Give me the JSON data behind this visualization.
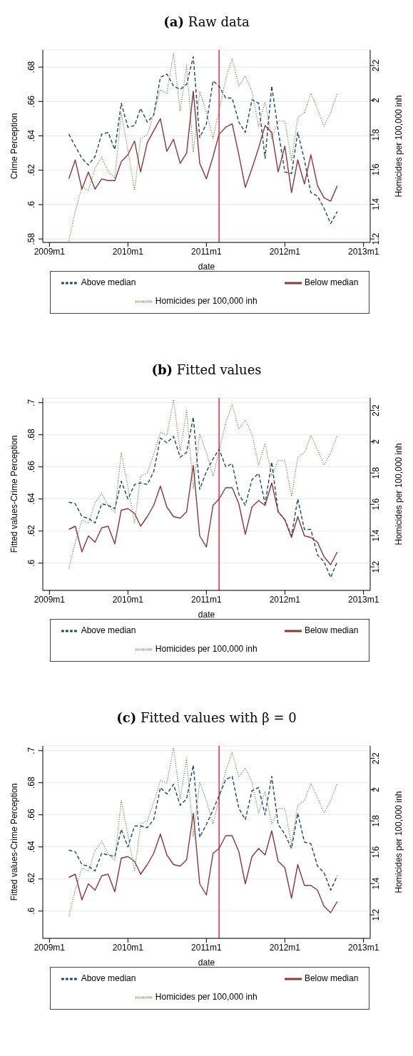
{
  "chart_data": [
    {
      "type": "line",
      "title": "(a) Raw data",
      "xlabel": "date",
      "ylabel": "Crime Perception",
      "y2label": "Homicides per 100,000 inh",
      "x": [
        "2009-04",
        "2009-05",
        "2009-06",
        "2009-07",
        "2009-08",
        "2009-09",
        "2009-10",
        "2009-11",
        "2009-12",
        "2010-01",
        "2010-02",
        "2010-03",
        "2010-04",
        "2010-05",
        "2010-06",
        "2010-07",
        "2010-08",
        "2010-09",
        "2010-10",
        "2010-11",
        "2010-12",
        "2011-01",
        "2011-02",
        "2011-03",
        "2011-04",
        "2011-05",
        "2011-06",
        "2011-07",
        "2011-08",
        "2011-09",
        "2011-10",
        "2011-11",
        "2011-12",
        "2012-01",
        "2012-02",
        "2012-03",
        "2012-04",
        "2012-05",
        "2012-06",
        "2012-07",
        "2012-08",
        "2012-09"
      ],
      "series": [
        {
          "name": "Above median",
          "color": "#1a476f",
          "line_style": "dashed",
          "values": [
            0.641,
            0.634,
            0.627,
            0.623,
            0.628,
            0.641,
            0.642,
            0.632,
            0.659,
            0.645,
            0.646,
            0.656,
            0.648,
            0.652,
            0.674,
            0.676,
            0.669,
            0.667,
            0.67,
            0.686,
            0.639,
            0.647,
            0.672,
            0.669,
            0.662,
            0.662,
            0.648,
            0.642,
            0.661,
            0.659,
            0.627,
            0.669,
            0.643,
            0.619,
            0.618,
            0.642,
            0.626,
            0.607,
            0.605,
            0.598,
            0.589,
            0.596
          ]
        },
        {
          "name": "Below median",
          "color": "#90353b",
          "line_style": "solid",
          "values": [
            0.615,
            0.626,
            0.609,
            0.619,
            0.609,
            0.615,
            0.614,
            0.614,
            0.625,
            0.629,
            0.637,
            0.619,
            0.636,
            0.643,
            0.65,
            0.631,
            0.638,
            0.624,
            0.63,
            0.666,
            0.624,
            0.615,
            0.628,
            0.641,
            0.645,
            0.647,
            0.629,
            0.61,
            0.621,
            0.633,
            0.646,
            0.642,
            0.619,
            0.634,
            0.607,
            0.626,
            0.612,
            0.629,
            0.611,
            0.604,
            0.602,
            0.611
          ]
        },
        {
          "name": "Homicides per 100,000 inh",
          "color": "#55752f",
          "line_style": "dotted",
          "axis": "y2",
          "values": [
            1.19,
            1.36,
            1.5,
            1.48,
            1.61,
            1.67,
            1.59,
            1.55,
            1.93,
            1.71,
            1.48,
            1.78,
            1.8,
            1.92,
            2.06,
            2.04,
            2.27,
            1.94,
            2.2,
            1.7,
            2.05,
            1.93,
            1.78,
            1.94,
            2.12,
            2.24,
            2.08,
            2.14,
            2.05,
            1.85,
            1.99,
            1.78,
            1.88,
            1.88,
            1.65,
            1.9,
            1.93,
            2.04,
            1.95,
            1.85,
            1.93,
            2.04
          ]
        }
      ],
      "xlim": [
        "2008-12",
        "2013-02"
      ],
      "xticks": [
        {
          "value": "2009-01",
          "label": "2009m1"
        },
        {
          "value": "2010-01",
          "label": "2010m1"
        },
        {
          "value": "2011-01",
          "label": "2011m1"
        },
        {
          "value": "2012-01",
          "label": "2012m1"
        },
        {
          "value": "2013-01",
          "label": "2013m1"
        }
      ],
      "ylim": [
        0.578,
        0.69
      ],
      "yticks": [
        {
          "value": 0.58,
          "label": ".58"
        },
        {
          "value": 0.6,
          "label": ".6"
        },
        {
          "value": 0.62,
          "label": ".62"
        },
        {
          "value": 0.64,
          "label": ".64"
        },
        {
          "value": 0.66,
          "label": ".66"
        },
        {
          "value": 0.68,
          "label": ".68"
        }
      ],
      "y2lim": [
        1.18,
        2.29
      ],
      "y2ticks": [
        1.2,
        1.4,
        1.6,
        1.8,
        2,
        2.2
      ],
      "ref_lines": [
        {
          "axis": "x",
          "value": "2011-03",
          "color": "#d6203a"
        }
      ],
      "grid": "y",
      "legend": "bottom"
    },
    {
      "type": "line",
      "title": "(b) Fitted values",
      "xlabel": "date",
      "ylabel": "Fitted values-Crime Perception",
      "y2label": "Homicides per 100,000 inh",
      "x": [
        "2009-04",
        "2009-05",
        "2009-06",
        "2009-07",
        "2009-08",
        "2009-09",
        "2009-10",
        "2009-11",
        "2009-12",
        "2010-01",
        "2010-02",
        "2010-03",
        "2010-04",
        "2010-05",
        "2010-06",
        "2010-07",
        "2010-08",
        "2010-09",
        "2010-10",
        "2010-11",
        "2010-12",
        "2011-01",
        "2011-02",
        "2011-03",
        "2011-04",
        "2011-05",
        "2011-06",
        "2011-07",
        "2011-08",
        "2011-09",
        "2011-10",
        "2011-11",
        "2011-12",
        "2012-01",
        "2012-02",
        "2012-03",
        "2012-04",
        "2012-05",
        "2012-06",
        "2012-07",
        "2012-08",
        "2012-09"
      ],
      "series": [
        {
          "name": "Above median",
          "color": "#1a476f",
          "line_style": "dashed",
          "values": [
            0.638,
            0.637,
            0.629,
            0.628,
            0.625,
            0.637,
            0.636,
            0.634,
            0.651,
            0.64,
            0.649,
            0.65,
            0.649,
            0.657,
            0.678,
            0.675,
            0.679,
            0.666,
            0.669,
            0.691,
            0.646,
            0.657,
            0.665,
            0.671,
            0.66,
            0.662,
            0.643,
            0.636,
            0.652,
            0.656,
            0.637,
            0.663,
            0.632,
            0.627,
            0.617,
            0.64,
            0.621,
            0.621,
            0.605,
            0.601,
            0.591,
            0.601
          ]
        },
        {
          "name": "Below median",
          "color": "#90353b",
          "line_style": "solid",
          "values": [
            0.621,
            0.623,
            0.607,
            0.617,
            0.613,
            0.622,
            0.623,
            0.612,
            0.633,
            0.634,
            0.631,
            0.623,
            0.629,
            0.636,
            0.648,
            0.635,
            0.629,
            0.628,
            0.632,
            0.661,
            0.617,
            0.61,
            0.636,
            0.64,
            0.647,
            0.647,
            0.637,
            0.618,
            0.635,
            0.639,
            0.636,
            0.65,
            0.632,
            0.627,
            0.616,
            0.629,
            0.617,
            0.616,
            0.613,
            0.604,
            0.599,
            0.607
          ]
        },
        {
          "name": "Homicides per 100,000 inh",
          "color": "#55752f",
          "line_style": "dotted",
          "axis": "y2",
          "values": [
            1.19,
            1.36,
            1.5,
            1.48,
            1.61,
            1.67,
            1.59,
            1.55,
            1.93,
            1.71,
            1.48,
            1.78,
            1.8,
            1.92,
            2.06,
            2.04,
            2.27,
            1.94,
            2.2,
            1.7,
            2.05,
            1.93,
            1.78,
            1.94,
            2.12,
            2.24,
            2.08,
            2.14,
            2.05,
            1.85,
            1.99,
            1.78,
            1.88,
            1.88,
            1.65,
            1.9,
            1.93,
            2.04,
            1.95,
            1.85,
            1.93,
            2.04
          ]
        }
      ],
      "xlim": [
        "2008-12",
        "2013-02"
      ],
      "xticks": [
        {
          "value": "2009-01",
          "label": "2009m1"
        },
        {
          "value": "2010-01",
          "label": "2010m1"
        },
        {
          "value": "2011-01",
          "label": "2011m1"
        },
        {
          "value": "2012-01",
          "label": "2012m1"
        },
        {
          "value": "2013-01",
          "label": "2013m1"
        }
      ],
      "ylim": [
        0.583,
        0.703
      ],
      "yticks": [
        {
          "value": 0.6,
          "label": ".6"
        },
        {
          "value": 0.62,
          "label": ".62"
        },
        {
          "value": 0.64,
          "label": ".64"
        },
        {
          "value": 0.66,
          "label": ".66"
        },
        {
          "value": 0.68,
          "label": ".68"
        },
        {
          "value": 0.7,
          "label": ".7"
        }
      ],
      "y2lim": [
        1.05,
        2.28
      ],
      "y2ticks": [
        1.2,
        1.4,
        1.6,
        1.8,
        2,
        2.2
      ],
      "ref_lines": [
        {
          "axis": "x",
          "value": "2011-03",
          "color": "#d6203a"
        }
      ],
      "grid": "y",
      "legend": "bottom"
    },
    {
      "type": "line",
      "title": "(c) Fitted values with β = 0",
      "xlabel": "date",
      "ylabel": "Fitted values-Crime Perception",
      "y2label": "Homicides per 100,000 inh",
      "x": [
        "2009-04",
        "2009-05",
        "2009-06",
        "2009-07",
        "2009-08",
        "2009-09",
        "2009-10",
        "2009-11",
        "2009-12",
        "2010-01",
        "2010-02",
        "2010-03",
        "2010-04",
        "2010-05",
        "2010-06",
        "2010-07",
        "2010-08",
        "2010-09",
        "2010-10",
        "2010-11",
        "2010-12",
        "2011-01",
        "2011-02",
        "2011-03",
        "2011-04",
        "2011-05",
        "2011-06",
        "2011-07",
        "2011-08",
        "2011-09",
        "2011-10",
        "2011-11",
        "2011-12",
        "2012-01",
        "2012-02",
        "2012-03",
        "2012-04",
        "2012-05",
        "2012-06",
        "2012-07",
        "2012-08",
        "2012-09"
      ],
      "series": [
        {
          "name": "Above median",
          "color": "#1a476f",
          "line_style": "dashed",
          "values": [
            0.638,
            0.637,
            0.629,
            0.628,
            0.625,
            0.636,
            0.635,
            0.634,
            0.651,
            0.64,
            0.653,
            0.653,
            0.652,
            0.657,
            0.677,
            0.673,
            0.679,
            0.666,
            0.67,
            0.691,
            0.646,
            0.654,
            0.663,
            0.672,
            0.682,
            0.684,
            0.664,
            0.657,
            0.675,
            0.677,
            0.66,
            0.684,
            0.654,
            0.648,
            0.639,
            0.661,
            0.643,
            0.642,
            0.628,
            0.624,
            0.613,
            0.622
          ]
        },
        {
          "name": "Below median",
          "color": "#90353b",
          "line_style": "solid",
          "values": [
            0.621,
            0.623,
            0.607,
            0.617,
            0.613,
            0.622,
            0.623,
            0.612,
            0.633,
            0.634,
            0.631,
            0.623,
            0.629,
            0.636,
            0.648,
            0.635,
            0.629,
            0.628,
            0.632,
            0.661,
            0.617,
            0.61,
            0.636,
            0.639,
            0.647,
            0.647,
            0.637,
            0.617,
            0.634,
            0.639,
            0.635,
            0.65,
            0.631,
            0.627,
            0.608,
            0.629,
            0.616,
            0.616,
            0.613,
            0.603,
            0.599,
            0.606
          ]
        },
        {
          "name": "Homicides per 100,000 inh",
          "color": "#55752f",
          "line_style": "dotted",
          "axis": "y2",
          "values": [
            1.19,
            1.36,
            1.5,
            1.48,
            1.61,
            1.67,
            1.59,
            1.55,
            1.93,
            1.71,
            1.48,
            1.78,
            1.8,
            1.92,
            2.06,
            2.04,
            2.27,
            1.94,
            2.2,
            1.7,
            2.05,
            1.93,
            1.78,
            1.94,
            2.12,
            2.24,
            2.08,
            2.14,
            2.05,
            1.85,
            1.99,
            1.78,
            1.88,
            1.88,
            1.65,
            1.9,
            1.93,
            2.04,
            1.95,
            1.85,
            1.93,
            2.04
          ]
        }
      ],
      "xlim": [
        "2008-12",
        "2013-02"
      ],
      "xticks": [
        {
          "value": "2009-01",
          "label": "2009m1"
        },
        {
          "value": "2010-01",
          "label": "2010m1"
        },
        {
          "value": "2011-01",
          "label": "2011m1"
        },
        {
          "value": "2012-01",
          "label": "2012m1"
        },
        {
          "value": "2013-01",
          "label": "2013m1"
        }
      ],
      "ylim": [
        0.583,
        0.703
      ],
      "yticks": [
        {
          "value": 0.6,
          "label": ".6"
        },
        {
          "value": 0.62,
          "label": ".62"
        },
        {
          "value": 0.64,
          "label": ".64"
        },
        {
          "value": 0.66,
          "label": ".66"
        },
        {
          "value": 0.68,
          "label": ".68"
        },
        {
          "value": 0.7,
          "label": ".7"
        }
      ],
      "y2lim": [
        1.05,
        2.28
      ],
      "y2ticks": [
        1.2,
        1.4,
        1.6,
        1.8,
        2,
        2.2
      ],
      "ref_lines": [
        {
          "axis": "x",
          "value": "2011-03",
          "color": "#d6203a"
        }
      ],
      "grid": "y",
      "legend": "bottom"
    }
  ]
}
